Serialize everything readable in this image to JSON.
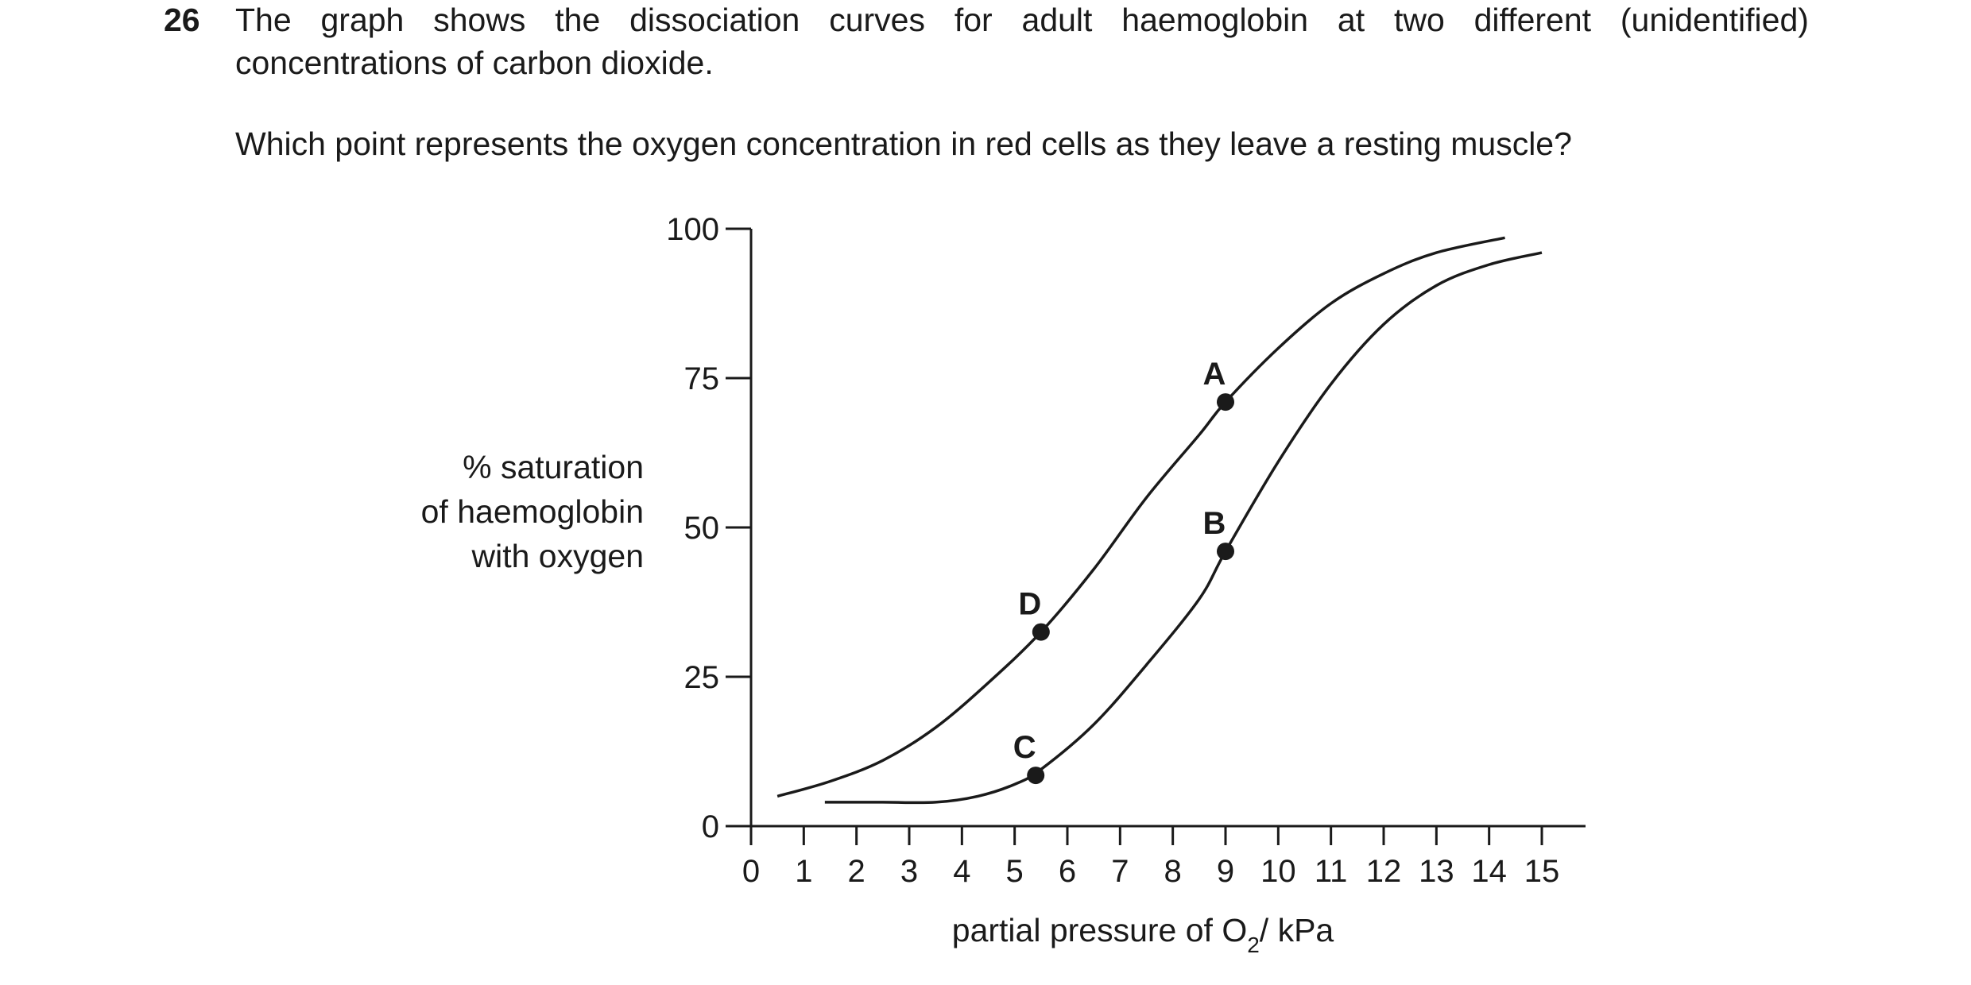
{
  "question": {
    "number": "26",
    "text_line1": "The graph shows the dissociation curves for adult haemoglobin at two different (unidentified)",
    "text_line2": "concentrations of carbon dioxide.",
    "prompt": "Which point represents the oxygen concentration in red cells as they leave a resting muscle?"
  },
  "chart_data": {
    "type": "line",
    "title": "",
    "xlabel_main": "partial pressure of O",
    "xlabel_sub": "2",
    "xlabel_unit": "/ kPa",
    "ylabel_lines": [
      "% saturation",
      "of haemoglobin",
      "with oxygen"
    ],
    "xlim": [
      0,
      15
    ],
    "ylim": [
      0,
      100
    ],
    "x_ticks": [
      0,
      1,
      2,
      3,
      4,
      5,
      6,
      7,
      8,
      9,
      10,
      11,
      12,
      13,
      14,
      15
    ],
    "y_ticks": [
      0,
      25,
      50,
      75,
      100
    ],
    "grid": false,
    "series": [
      {
        "points": [
          [
            0.5,
            5
          ],
          [
            1.5,
            7.5
          ],
          [
            2.5,
            11
          ],
          [
            3.5,
            16.5
          ],
          [
            4.5,
            24
          ],
          [
            5.5,
            32.5
          ],
          [
            6.5,
            43
          ],
          [
            7.5,
            55
          ],
          [
            8.5,
            65.5
          ],
          [
            9,
            71
          ],
          [
            10,
            80
          ],
          [
            11,
            87.5
          ],
          [
            12,
            92.5
          ],
          [
            13,
            96
          ],
          [
            14.3,
            98.5
          ]
        ]
      },
      {
        "points": [
          [
            1.4,
            4
          ],
          [
            2.5,
            4
          ],
          [
            3.5,
            4
          ],
          [
            4.3,
            5
          ],
          [
            5,
            7
          ],
          [
            5.5,
            9.5
          ],
          [
            6.5,
            17
          ],
          [
            7.5,
            27
          ],
          [
            8.5,
            38
          ],
          [
            9,
            46
          ],
          [
            10,
            61
          ],
          [
            11,
            74
          ],
          [
            12,
            84
          ],
          [
            13,
            90.5
          ],
          [
            14,
            94
          ],
          [
            15,
            96
          ]
        ]
      }
    ],
    "points": [
      {
        "label": "A",
        "x": 9,
        "y": 71
      },
      {
        "label": "B",
        "x": 9,
        "y": 46
      },
      {
        "label": "C",
        "x": 5.4,
        "y": 8.5
      },
      {
        "label": "D",
        "x": 5.5,
        "y": 32.5
      }
    ]
  }
}
